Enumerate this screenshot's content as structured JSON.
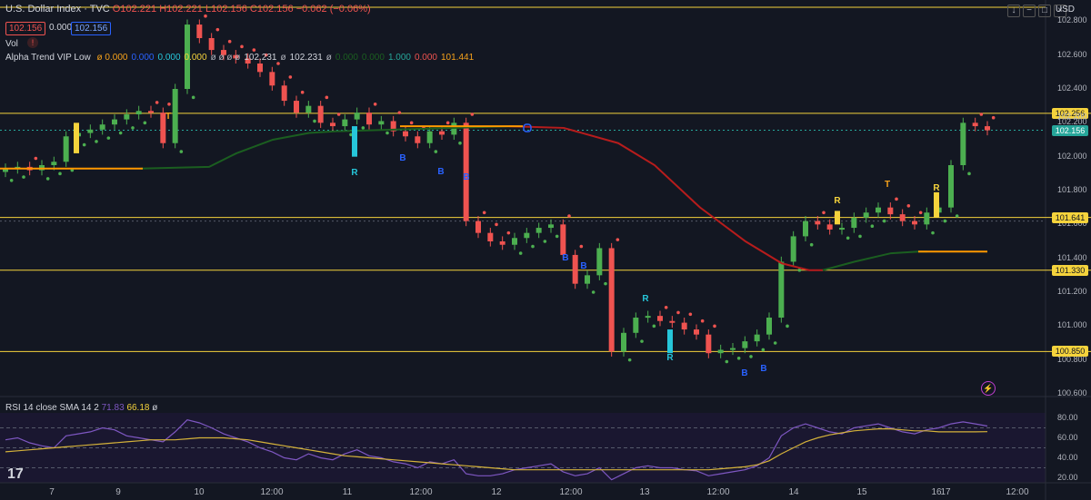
{
  "header": {
    "symbol": "U.S. Dollar Index · TVC",
    "open": "O102.221",
    "high": "H102.221",
    "low": "L102.156",
    "close": "C102.156",
    "change": "−0.062 (−0.06%)"
  },
  "quote": {
    "sell": "102.156",
    "spread": "0.000",
    "buy": "102.156"
  },
  "vol_label": "Vol",
  "indicator": {
    "name": "Alpha Trend VIP Low",
    "values": [
      "ø 0.000",
      "0.000",
      "0.000",
      "0.000",
      "ø ø ø ø",
      "102.231",
      "ø",
      "102.231",
      "ø",
      "0.000",
      "0.000",
      "1.000",
      "0.000",
      "101.441"
    ],
    "value_colors": [
      "#f7a21b",
      "#2962ff",
      "#26c6da",
      "#f5d33c",
      "#b2b5be",
      "#d1d4dc",
      "#b2b5be",
      "#d1d4dc",
      "#b2b5be",
      "#1b5e20",
      "#1b5e20",
      "#26a69a",
      "#ef5350",
      "#f7a21b"
    ]
  },
  "rsi": {
    "label": "RSI 14 close SMA 14 2",
    "rsi_value": "71.83",
    "sma_value": "66.18",
    "tail": "ø"
  },
  "currency": "USD",
  "price_axis": [
    "102.800",
    "102.600",
    "102.400",
    "102.200",
    "102.000",
    "101.800",
    "101.600",
    "101.400",
    "101.200",
    "101.000",
    "100.800",
    "100.600"
  ],
  "highlight_labels": [
    {
      "text": "102.256",
      "kind": "yellow"
    },
    {
      "text": "102.200",
      "kind": "plain"
    },
    {
      "text": "102.156",
      "kind": "green"
    },
    {
      "text": "101.641",
      "kind": "yellow"
    },
    {
      "text": "101.330",
      "kind": "yellow"
    },
    {
      "text": "100.850",
      "kind": "yellow"
    }
  ],
  "rsi_axis": [
    "80.00",
    "60.00",
    "40.00",
    "20.00"
  ],
  "time_axis": [
    "7",
    "9",
    "10",
    "12:00",
    "11",
    "12:00",
    "12",
    "12:00",
    "13",
    "12:00",
    "14",
    "15",
    "16",
    "17",
    "12:00"
  ],
  "markers": {
    "R": "R",
    "T": "T",
    "B": "B"
  },
  "colors": {
    "bg": "#131722",
    "up": "#4caf50",
    "down": "#ef5350",
    "level": "#f5d33c",
    "orange": "#ff9800",
    "trend_green": "#1b5e20",
    "trend_red": "#b71c1c",
    "rsi": "#7e57c2",
    "rsi_sma": "#d4b23a",
    "teal": "#26c6da",
    "blue": "#2962ff"
  },
  "chart_data": {
    "type": "candlestick",
    "ylim": [
      100.6,
      102.85
    ],
    "levels": [
      102.256,
      101.641,
      101.33,
      100.85
    ],
    "last_price": 102.156,
    "price_series": [
      101.93,
      101.94,
      101.92,
      101.95,
      101.97,
      102.12,
      102.14,
      102.16,
      102.19,
      102.22,
      102.25,
      102.27,
      102.26,
      102.08,
      102.4,
      102.78,
      102.7,
      102.63,
      102.6,
      102.58,
      102.55,
      102.5,
      102.42,
      102.33,
      102.26,
      102.3,
      102.2,
      102.18,
      102.22,
      102.26,
      102.19,
      102.21,
      102.15,
      102.12,
      102.08,
      102.15,
      102.13,
      102.2,
      101.62,
      101.55,
      101.5,
      101.48,
      101.52,
      101.55,
      101.58,
      101.6,
      101.42,
      101.25,
      101.3,
      101.46,
      100.85,
      100.96,
      101.05,
      101.06,
      101.03,
      101.02,
      100.98,
      100.95,
      100.84,
      100.86,
      100.87,
      100.91,
      100.95,
      101.05,
      101.38,
      101.53,
      101.62,
      101.6,
      101.57,
      101.58,
      101.64,
      101.67,
      101.7,
      101.66,
      101.62,
      101.6,
      101.67,
      101.7,
      101.95,
      102.2,
      102.18,
      102.156
    ],
    "rsi_series": [
      58,
      60,
      55,
      52,
      50,
      62,
      64,
      66,
      70,
      68,
      62,
      60,
      58,
      56,
      66,
      78,
      75,
      70,
      64,
      60,
      56,
      50,
      46,
      40,
      38,
      44,
      40,
      38,
      44,
      48,
      42,
      40,
      36,
      34,
      30,
      36,
      34,
      38,
      24,
      22,
      22,
      24,
      28,
      30,
      32,
      34,
      26,
      22,
      24,
      30,
      18,
      24,
      30,
      32,
      30,
      30,
      28,
      27,
      22,
      24,
      26,
      28,
      32,
      40,
      62,
      70,
      74,
      70,
      66,
      64,
      70,
      72,
      74,
      70,
      66,
      64,
      68,
      70,
      74,
      76,
      74,
      71.83
    ],
    "rsi_sma_series": [
      46,
      47,
      48,
      49,
      50,
      51,
      52,
      53,
      54,
      55,
      56,
      57,
      58,
      58,
      58,
      59,
      60,
      60,
      60,
      59,
      58,
      56,
      54,
      52,
      50,
      48,
      46,
      44,
      42,
      41,
      40,
      39,
      38,
      37,
      36,
      35,
      34,
      33,
      32,
      31,
      30,
      29,
      28,
      28,
      28,
      28,
      28,
      28,
      28,
      28,
      28,
      28,
      28,
      28,
      28,
      28,
      28,
      28,
      28,
      29,
      30,
      31,
      33,
      37,
      44,
      50,
      56,
      60,
      63,
      65,
      67,
      68,
      69,
      69,
      68,
      67,
      67,
      66,
      66,
      66,
      66,
      66.18
    ]
  }
}
